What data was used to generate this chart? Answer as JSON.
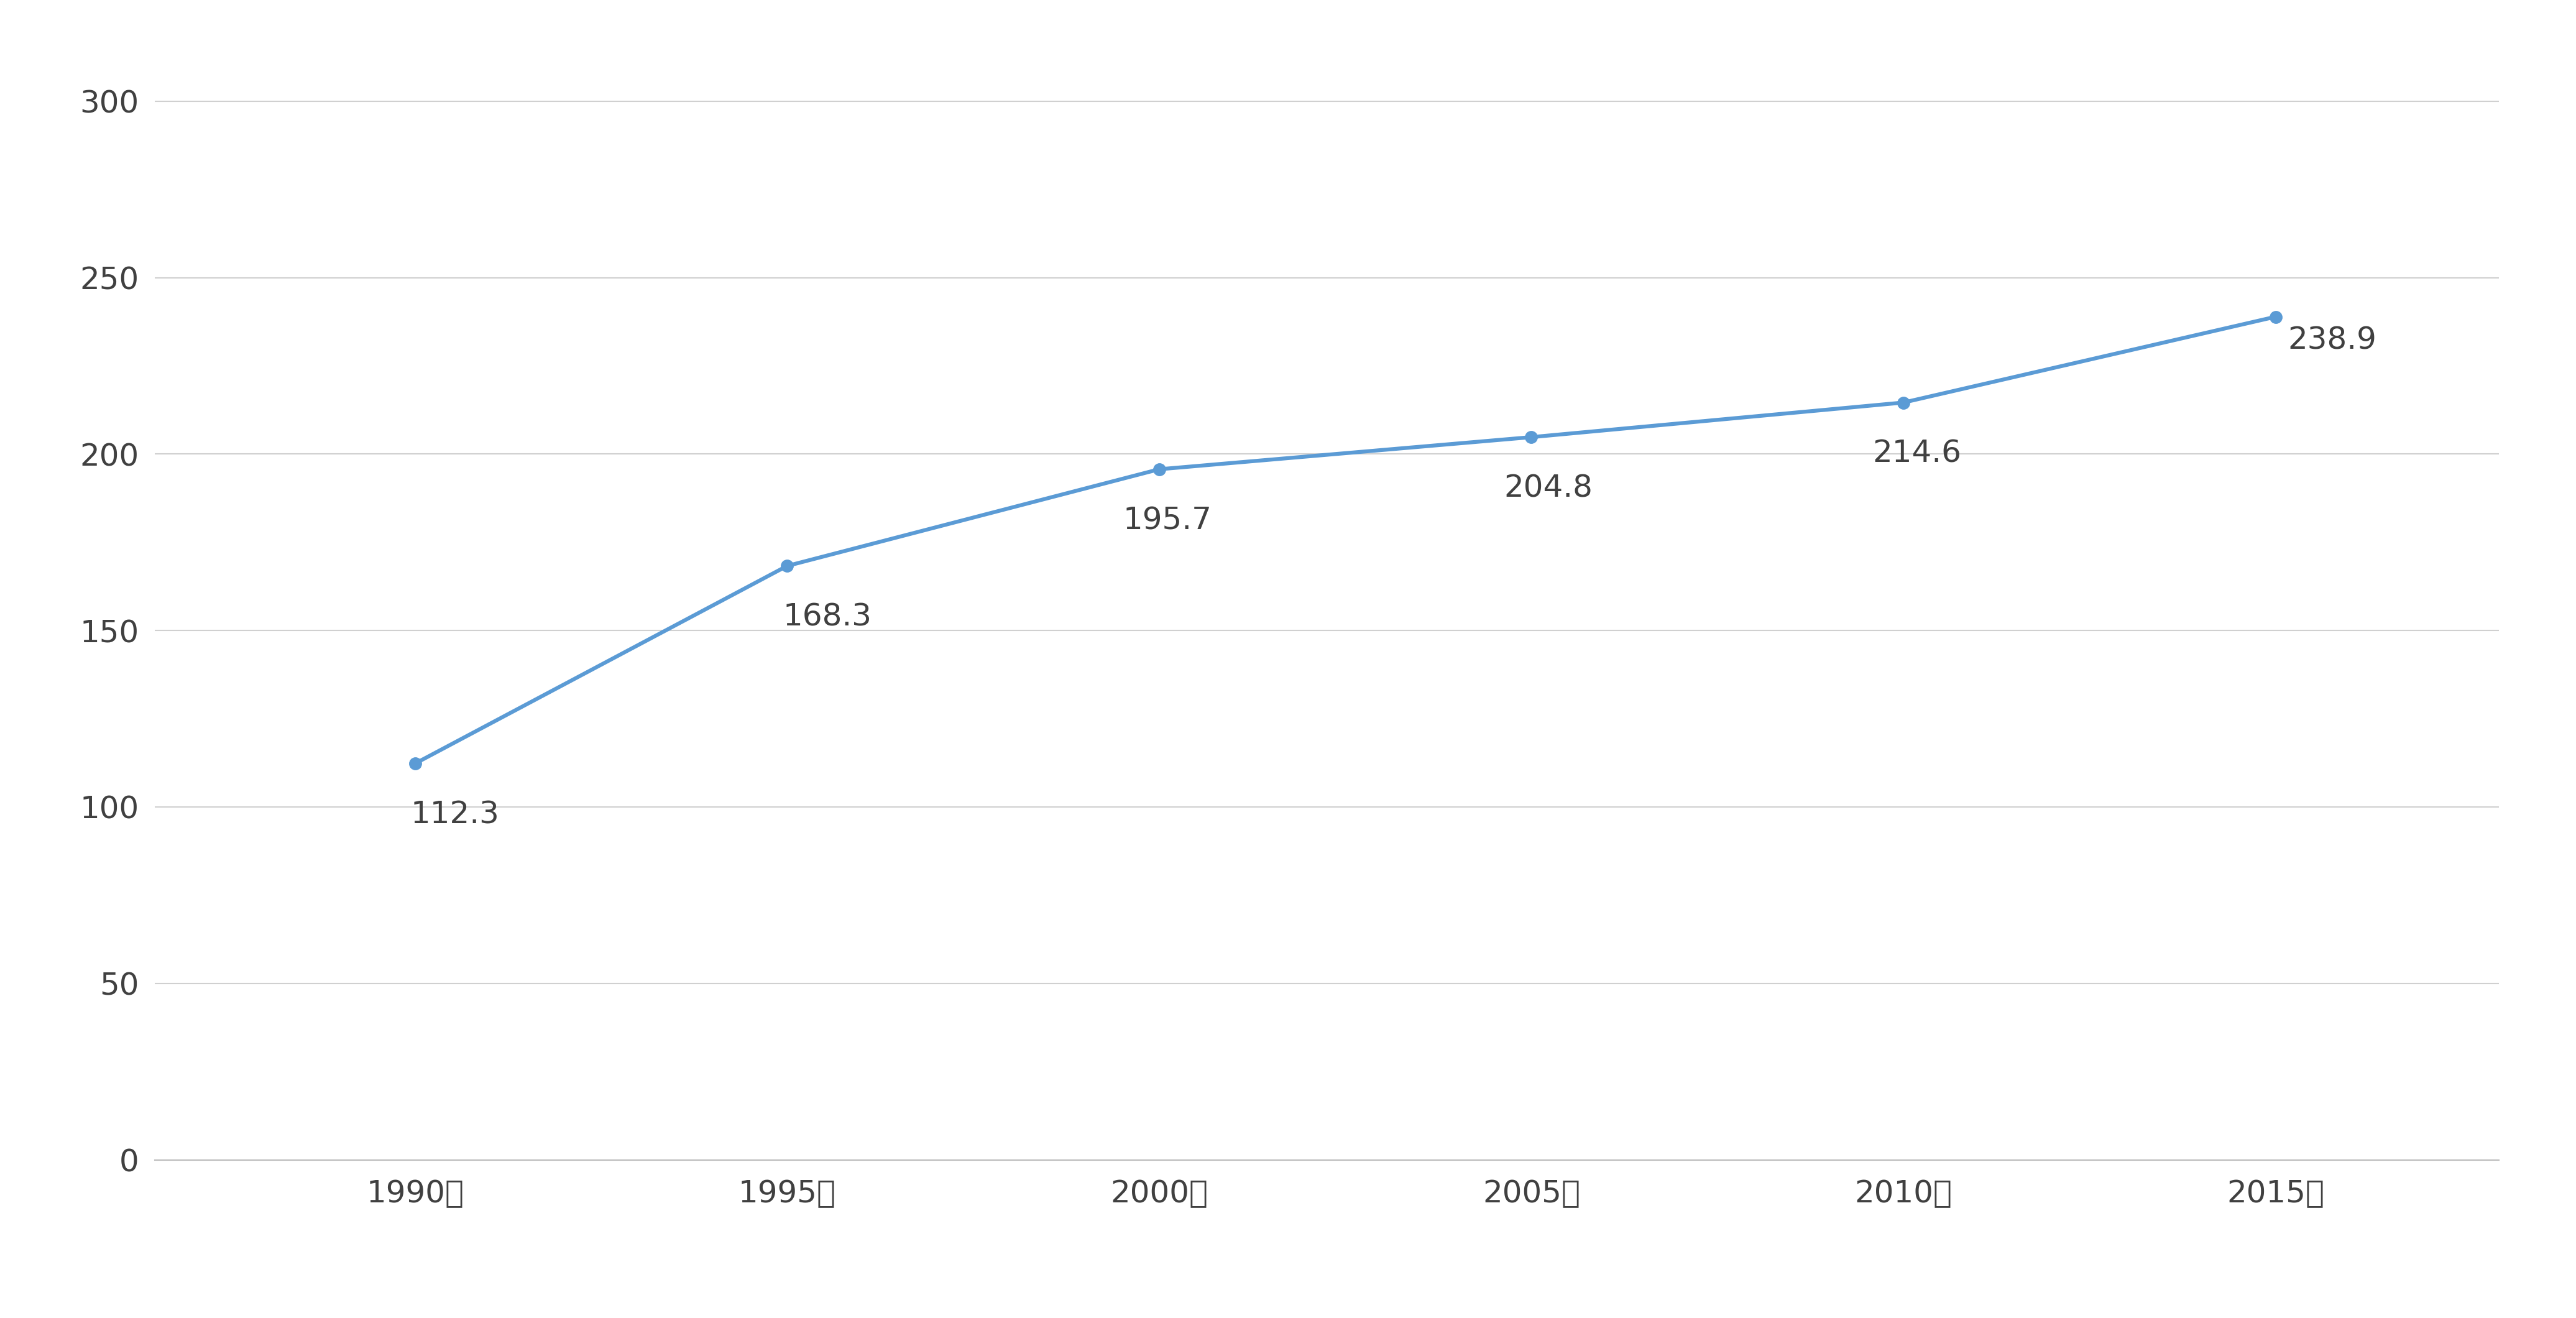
{
  "x_labels": [
    "1990年",
    "1995年",
    "2000年",
    "2005年",
    "2010年",
    "2015年"
  ],
  "x_values": [
    1990,
    1995,
    2000,
    2005,
    2010,
    2015
  ],
  "y_values": [
    112.3,
    168.3,
    195.7,
    204.8,
    214.6,
    238.9
  ],
  "line_color": "#5b9bd5",
  "marker_color": "#5b9bd5",
  "marker_style": "o",
  "marker_size": 14,
  "line_width": 4.5,
  "ylim": [
    0,
    310
  ],
  "yticks": [
    0,
    50,
    100,
    150,
    200,
    250,
    300
  ],
  "xlim": [
    1986.5,
    2018
  ],
  "background_color": "#ffffff",
  "grid_color": "#d0d0d0",
  "tick_fontsize": 36,
  "annotation_fontsize": 36,
  "text_color": "#404040",
  "label_values": [
    "112.3",
    "168.3",
    "195.7",
    "204.8",
    "214.6",
    "238.9"
  ],
  "ann_offsets_x": [
    -5,
    -5,
    -42,
    -32,
    -36,
    14
  ],
  "ann_offsets_y": [
    -42,
    -42,
    -42,
    -42,
    -42,
    -10
  ]
}
